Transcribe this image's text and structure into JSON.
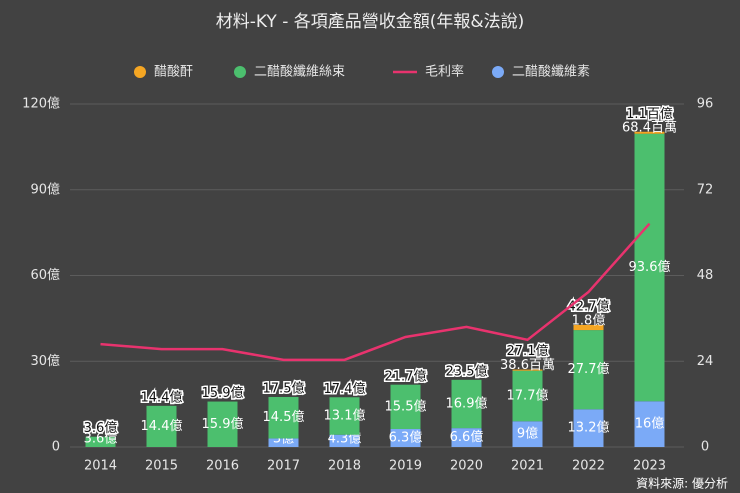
{
  "chart_data": {
    "type": "bar",
    "stacked": true,
    "title": "材料-KY - 各項產品營收金額(年報&法說)",
    "source": "資料來源: 優分析",
    "categories": [
      "2014",
      "2015",
      "2016",
      "2017",
      "2018",
      "2019",
      "2020",
      "2021",
      "2022",
      "2023"
    ],
    "series": [
      {
        "name": "醋酸酐",
        "type": "bar",
        "color": "#f5a623",
        "values": [
          null,
          null,
          null,
          null,
          null,
          null,
          null,
          0.386,
          1.8,
          0.684
        ],
        "value_labels": [
          null,
          null,
          null,
          null,
          null,
          null,
          null,
          "38.6百萬",
          "1.8億",
          "68.4百萬"
        ]
      },
      {
        "name": "二醋酸纖維絲束",
        "type": "bar",
        "color": "#4cbf6e",
        "values": [
          3.6,
          14.4,
          15.9,
          14.5,
          13.1,
          15.5,
          16.9,
          17.7,
          27.7,
          93.6
        ],
        "value_labels": [
          "3.6億",
          "14.4億",
          "15.9億",
          "14.5億",
          "13.1億",
          "15.5億",
          "16.9億",
          "17.7億",
          "27.7億",
          "93.6億"
        ]
      },
      {
        "name": "毛利率",
        "type": "line",
        "axis": "y2",
        "color": "#e8336e",
        "values": [
          28.8,
          27.4,
          27.4,
          24.4,
          24.4,
          30.8,
          33.6,
          30,
          43.4,
          62.5
        ]
      },
      {
        "name": "二醋酸纖維素",
        "type": "bar",
        "color": "#7baaf7",
        "values": [
          null,
          null,
          null,
          3,
          4.3,
          6.3,
          6.6,
          9,
          13.2,
          16
        ],
        "value_labels": [
          null,
          null,
          null,
          "3億",
          "4.3億",
          "6.3億",
          "6.6億",
          "9億",
          "13.2億",
          "16億"
        ]
      }
    ],
    "totals": {
      "values": [
        3.6,
        14.4,
        15.9,
        17.5,
        17.4,
        21.7,
        23.5,
        27.1,
        42.7,
        110
      ],
      "value_labels": [
        "3.6億",
        "14.4億",
        "15.9億",
        "17.5億",
        "17.4億",
        "21.7億",
        "23.5億",
        "27.1億",
        "42.7億",
        "1.1百億"
      ]
    },
    "ylim": [
      0,
      120
    ],
    "yticks": [
      0,
      {
        "value": 30,
        "label": "30億"
      },
      {
        "value": 60,
        "label": "60億"
      },
      {
        "value": 90,
        "label": "90億"
      },
      {
        "value": 120,
        "label": "120億"
      }
    ],
    "y2lim": [
      0,
      96
    ],
    "y2ticks": [
      0,
      24,
      48,
      72,
      96
    ],
    "grid": true
  }
}
